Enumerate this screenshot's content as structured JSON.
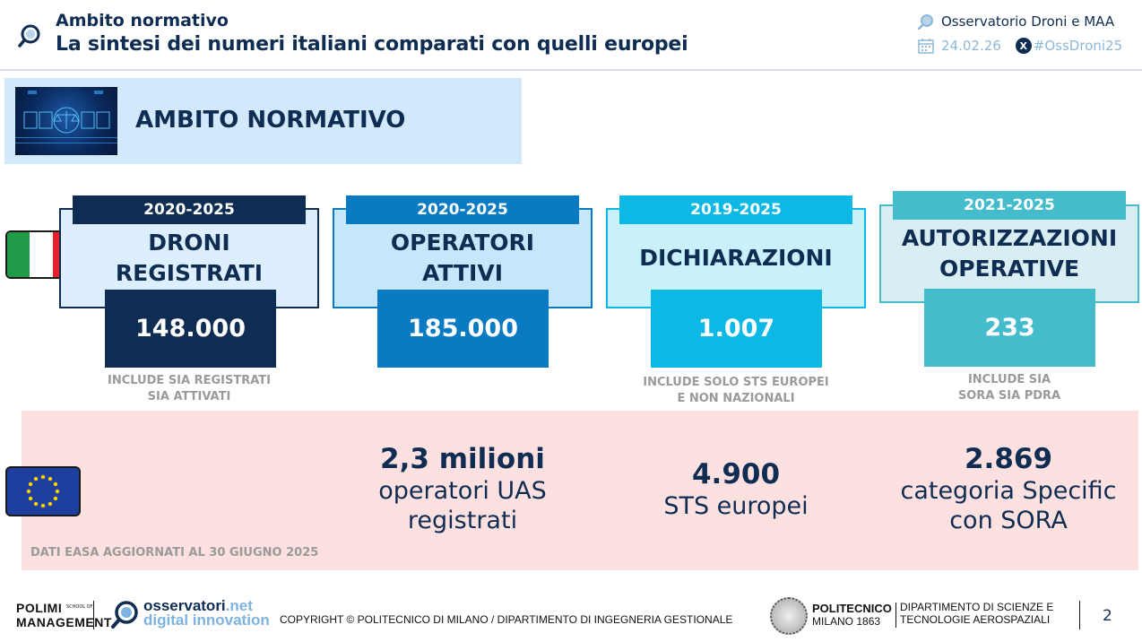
{
  "header": {
    "section": "Ambito normativo",
    "title": "La sintesi dei numeri italiani comparati con quelli europei",
    "org": "Osservatorio Droni e MAA",
    "date": "24.02.26",
    "hashtag": "#OssDroni25",
    "x_badge": "X"
  },
  "banner": {
    "title": "AMBITO NORMATIVO"
  },
  "italy_cards": [
    {
      "years": "2020-2025",
      "title_line1": "DRONI",
      "title_line2": "REGISTRATI",
      "value": "148.000",
      "note_line1": "INCLUDE SIA REGISTRATI",
      "note_line2": "SIA ATTIVATI"
    },
    {
      "years": "2020-2025",
      "title_line1": "OPERATORI",
      "title_line2": "ATTIVI",
      "value": "185.000",
      "note_line1": "",
      "note_line2": ""
    },
    {
      "years": "2019-2025",
      "title_line1": "DICHIARAZIONI",
      "title_line2": "",
      "value": "1.007",
      "note_line1": "INCLUDE SOLO STS EUROPEI",
      "note_line2": "E NON NAZIONALI"
    },
    {
      "years": "2021-2025",
      "title_line1": "AUTORIZZAZIONI",
      "title_line2": "OPERATIVE",
      "value": "233",
      "note_line1": "INCLUDE SIA",
      "note_line2": "SORA SIA PDRA"
    }
  ],
  "europe": {
    "stats": [
      {
        "number": "2,3 milioni",
        "label_line1": "operatori UAS",
        "label_line2": "registrati"
      },
      {
        "number": "4.900",
        "label_line1": "STS europei",
        "label_line2": ""
      },
      {
        "number": "2.869",
        "label_line1": "categoria Specific",
        "label_line2": "con SORA"
      }
    ],
    "source": "DATI EASA AGGIORNATI AL 30 GIUGNO 2025"
  },
  "footer": {
    "polimi_line1": "POLIMI",
    "polimi_line2": "MANAGEMENT",
    "school_line1": "SCHOOL OF",
    "osservatori_main": "osservatori",
    "osservatori_net": ".net",
    "digital_innovation": "digital innovation",
    "copyright": "COPYRIGHT © POLITECNICO DI MILANO / DIPARTIMENTO DI INGEGNERIA GESTIONALE",
    "poli_line1": "POLITECNICO",
    "poli_line2": "MILANO 1863",
    "dept_line1": "DIPARTIMENTO DI SCIENZE E",
    "dept_line2": "TECNOLOGIE AEROSPAZIALI",
    "page_number": "2"
  },
  "colors": {
    "card1": "#0f2d52",
    "card2": "#0a7bc2",
    "card3": "#0bb8e6",
    "card4": "#45bccc",
    "eu_band": "#fde0e0",
    "banner": "#d2e9fb"
  },
  "icons": {
    "header": "magnifier-icon",
    "org": "magnifier-icon",
    "date": "calendar-icon",
    "hashtag": "x-logo-icon"
  }
}
